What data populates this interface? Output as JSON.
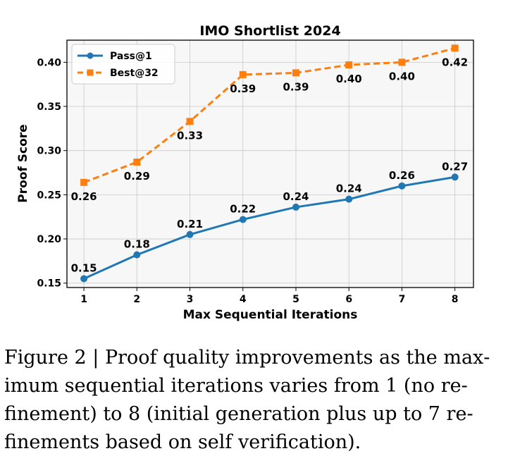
{
  "chart_data": {
    "type": "line",
    "title": "IMO Shortlist 2024",
    "xlabel": "Max Sequential Iterations",
    "ylabel": "Proof Score",
    "x": [
      1,
      2,
      3,
      4,
      5,
      6,
      7,
      8
    ],
    "xticks": [
      "1",
      "2",
      "3",
      "4",
      "5",
      "6",
      "7",
      "8"
    ],
    "yticks": [
      "0.15",
      "0.20",
      "0.25",
      "0.30",
      "0.35",
      "0.40"
    ],
    "ytick_values": [
      0.15,
      0.2,
      0.25,
      0.3,
      0.35,
      0.4
    ],
    "xlim": [
      0.68,
      8.35
    ],
    "ylim": [
      0.145,
      0.425
    ],
    "grid": true,
    "legend_position": "top-left",
    "series": [
      {
        "name": "Pass@1",
        "color": "#1f77b4",
        "marker": "circle",
        "linestyle": "solid",
        "values": [
          0.155,
          0.182,
          0.205,
          0.222,
          0.236,
          0.245,
          0.26,
          0.27
        ],
        "labels": [
          "0.15",
          "0.18",
          "0.21",
          "0.22",
          "0.24",
          "0.24",
          "0.26",
          "0.27"
        ],
        "label_position": "above"
      },
      {
        "name": "Best@32",
        "color": "#ff7f0e",
        "marker": "square",
        "linestyle": "dashed",
        "values": [
          0.264,
          0.287,
          0.333,
          0.386,
          0.388,
          0.397,
          0.4,
          0.416
        ],
        "labels": [
          "0.26",
          "0.29",
          "0.33",
          "0.39",
          "0.39",
          "0.40",
          "0.40",
          "0.42"
        ],
        "label_position": "below"
      }
    ]
  },
  "caption": "Figure 2 | Proof quality improvements as the max­imum sequential iterations varies from 1 (no re­finement) to 8 (initial generation plus up to 7 re­finements based on self verification)."
}
